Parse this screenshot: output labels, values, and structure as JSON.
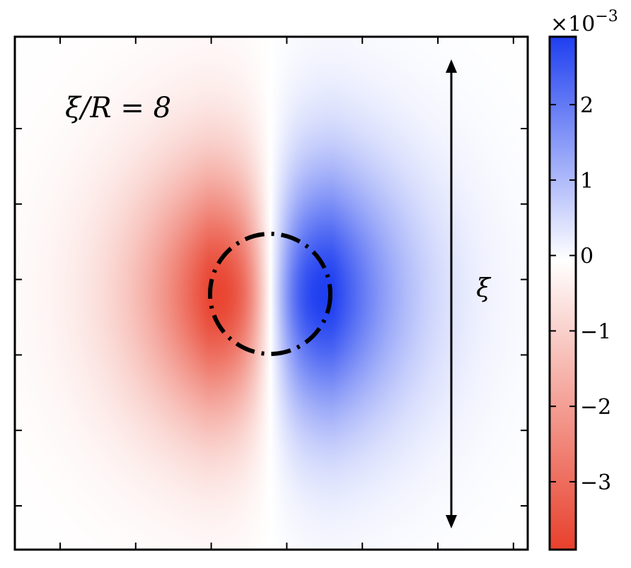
{
  "chart_data": {
    "type": "heatmap",
    "title": "",
    "annotation": "ξ/R = 8",
    "arrow_label": "ξ",
    "xlabel": "",
    "ylabel": "",
    "x_tick_labels": [],
    "y_tick_labels": [],
    "field": {
      "description_units": "dipole-like field, negative lobe left, positive lobe right",
      "min": -0.0039,
      "max": 0.0029,
      "negative_lobe_center_value": -0.0038,
      "positive_lobe_center_value": 0.0029
    },
    "colorbar": {
      "multiplier_text": "×10",
      "multiplier_exponent": "−3",
      "ticks": [
        {
          "value": 2,
          "label": "2"
        },
        {
          "value": 1,
          "label": "1"
        },
        {
          "value": 0,
          "label": "0"
        },
        {
          "value": -1,
          "label": "−1"
        },
        {
          "value": -2,
          "label": "−2"
        },
        {
          "value": -3,
          "label": "−3"
        }
      ],
      "vmin": -3.9,
      "vmax": 2.9,
      "colors": {
        "negative": "#e8402c",
        "zero": "#ffffff",
        "positive": "#1f3ff0"
      }
    },
    "circle_style": "dash-dot",
    "grid": false
  }
}
